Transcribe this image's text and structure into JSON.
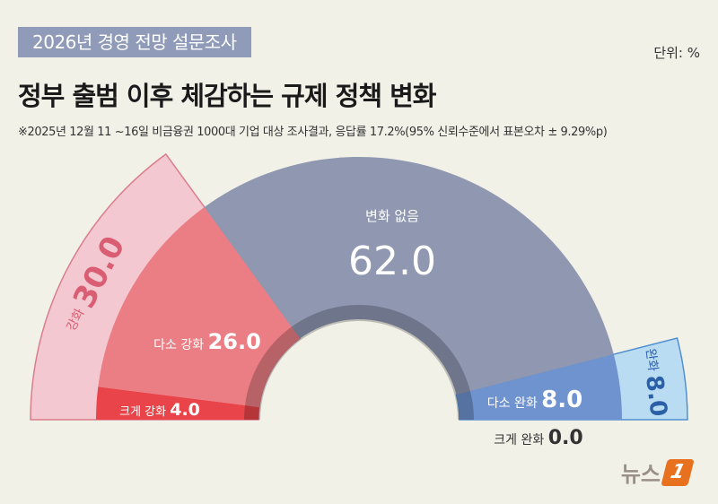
{
  "header": {
    "tag": "2026년 경영 전망 설문조사",
    "title": "정부 출범 이후 체감하는 규제 정책 변화",
    "note": "※2025년 12월 11 ~16일 비금융권 1000대 기업 대상 조사결과, 응답률 17.2%(95% 신뢰수준에서 표본오차 ± 9.29%p)",
    "unit": "단위: %"
  },
  "logo": {
    "text": "뉴스",
    "badge": "1"
  },
  "chart_data": {
    "type": "semi-donut",
    "series": [
      {
        "label": "크게 강화",
        "value": 4.0,
        "color": "#e8444a"
      },
      {
        "label": "다소 강화",
        "value": 26.0,
        "color": "#ea7e84"
      },
      {
        "label": "변화 없음",
        "value": 62.0,
        "color": "#8f97b1"
      },
      {
        "label": "다소 완화",
        "value": 8.0,
        "color": "#6f93cf"
      },
      {
        "label": "크게 완화",
        "value": 0.0,
        "color": "#6f93cf"
      }
    ],
    "groups": [
      {
        "label": "강화",
        "value": 30.0,
        "color": "#f4c8d0",
        "stroke": "#d97d8c",
        "text_color": "#d95e73"
      },
      {
        "label": "완화",
        "value": 8.0,
        "color": "#b9dcf3",
        "stroke": "#4f8fd0",
        "text_color": "#2b5fa8"
      }
    ]
  }
}
